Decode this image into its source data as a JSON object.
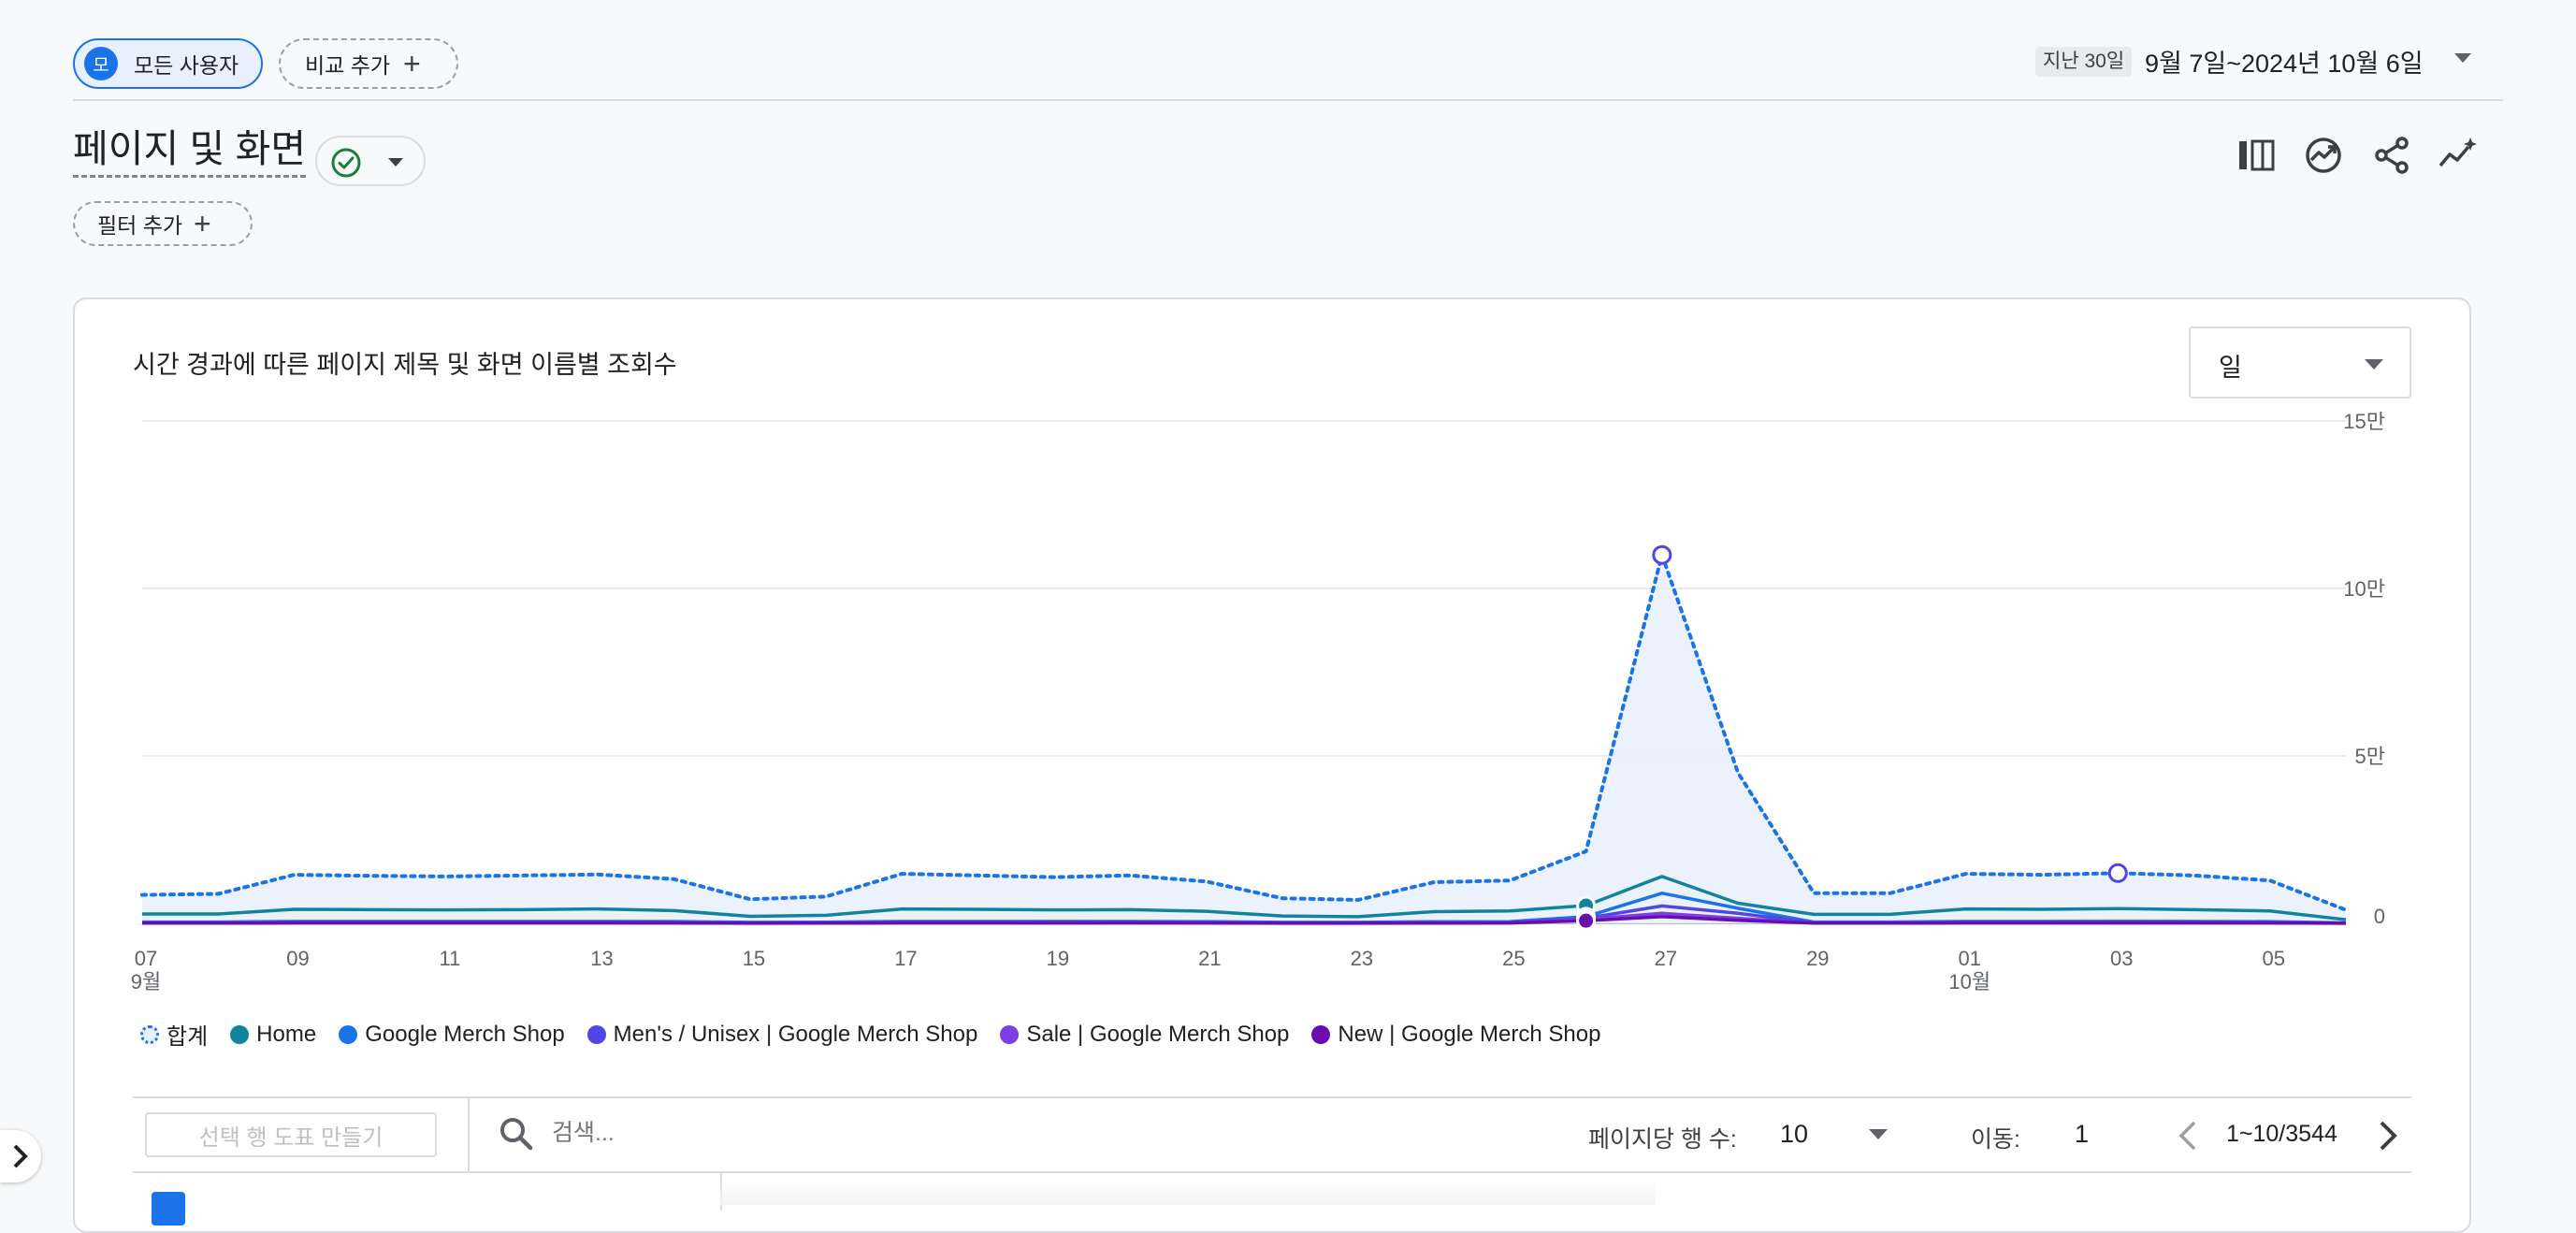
{
  "comparison": {
    "segment_avatar": "모",
    "segment_label": "모든 사용자",
    "add_compare_label": "비교 추가"
  },
  "date_range": {
    "preset": "지난 30일",
    "range": "9월 7일~2024년 10월 6일"
  },
  "page": {
    "title": "페이지 및 화면",
    "add_filter_label": "필터 추가"
  },
  "toolbar_icons": [
    "compare-columns-icon",
    "insights-icon",
    "share-icon",
    "sparkline-icon"
  ],
  "chart_card": {
    "title": "시간 경과에 따른 페이지 제목 및 화면 이름별 조회수",
    "period": "일"
  },
  "chart_data": {
    "type": "line",
    "x": [
      "2024-09-07",
      "2024-09-08",
      "2024-09-09",
      "2024-09-10",
      "2024-09-11",
      "2024-09-12",
      "2024-09-13",
      "2024-09-14",
      "2024-09-15",
      "2024-09-16",
      "2024-09-17",
      "2024-09-18",
      "2024-09-19",
      "2024-09-20",
      "2024-09-21",
      "2024-09-22",
      "2024-09-23",
      "2024-09-24",
      "2024-09-25",
      "2024-09-26",
      "2024-09-27",
      "2024-09-28",
      "2024-09-29",
      "2024-09-30",
      "2024-10-01",
      "2024-10-02",
      "2024-10-03",
      "2024-10-04",
      "2024-10-05",
      "2024-10-06"
    ],
    "x_tick_labels": [
      "07",
      "09",
      "11",
      "13",
      "15",
      "17",
      "19",
      "21",
      "23",
      "25",
      "27",
      "29",
      "01",
      "03",
      "05"
    ],
    "x_tick_months": {
      "07": "9월",
      "01": "10월"
    },
    "y_tick_labels": [
      "0",
      "5만",
      "10만",
      "15만"
    ],
    "ylim": [
      0,
      150000
    ],
    "y_axis_side": "right",
    "grid": true,
    "series": [
      {
        "name": "합계",
        "style": "dotted-area",
        "color": "#1a73e8",
        "values": [
          8500,
          8800,
          14500,
          14200,
          14000,
          14300,
          14600,
          13200,
          7200,
          8000,
          14800,
          14300,
          13800,
          14300,
          12500,
          7500,
          7000,
          12300,
          12800,
          21500,
          110000,
          45000,
          9000,
          9000,
          14800,
          14500,
          15000,
          14300,
          12800,
          4000
        ]
      },
      {
        "name": "Home",
        "color": "#12829d",
        "values": [
          2800,
          2800,
          4200,
          4100,
          4000,
          4100,
          4300,
          3800,
          2100,
          2400,
          4300,
          4200,
          4000,
          4100,
          3600,
          2200,
          2000,
          3500,
          3700,
          5300,
          14000,
          6000,
          2700,
          2700,
          4300,
          4200,
          4400,
          4100,
          3700,
          1100
        ]
      },
      {
        "name": "Google Merch Shop",
        "color": "#1a73e8",
        "values": [
          400,
          400,
          600,
          600,
          600,
          600,
          600,
          550,
          300,
          350,
          600,
          600,
          580,
          600,
          520,
          320,
          300,
          500,
          520,
          2000,
          9000,
          4500,
          400,
          400,
          600,
          600,
          620,
          600,
          530,
          150
        ]
      },
      {
        "name": "Men's / Unisex | Google Merch Shop",
        "color": "#4f46e5",
        "values": [
          150,
          150,
          250,
          250,
          250,
          250,
          260,
          230,
          120,
          140,
          260,
          250,
          240,
          250,
          220,
          130,
          120,
          210,
          220,
          1500,
          5200,
          3000,
          150,
          150,
          260,
          250,
          260,
          250,
          220,
          60
        ]
      },
      {
        "name": "Sale | Google Merch Shop",
        "color": "#7b3fe4",
        "values": [
          100,
          100,
          160,
          160,
          160,
          160,
          170,
          150,
          80,
          90,
          170,
          160,
          155,
          160,
          140,
          85,
          80,
          135,
          140,
          1200,
          3000,
          1500,
          100,
          100,
          170,
          160,
          170,
          160,
          140,
          40
        ]
      },
      {
        "name": "New | Google Merch Shop",
        "color": "#6a0dad",
        "values": [
          60,
          60,
          100,
          100,
          100,
          100,
          105,
          95,
          50,
          55,
          105,
          100,
          98,
          100,
          88,
          52,
          50,
          85,
          88,
          800,
          2000,
          900,
          60,
          60,
          105,
          100,
          105,
          100,
          88,
          25
        ]
      }
    ],
    "markers": [
      {
        "series": 1,
        "index": 19
      },
      {
        "series": 2,
        "index": 19
      },
      {
        "series": 3,
        "index": 19
      },
      {
        "series": 4,
        "index": 19
      },
      {
        "series": 5,
        "index": 19
      },
      {
        "series": 0,
        "index": 20,
        "hollow": true
      },
      {
        "series": 0,
        "index": 26,
        "hollow": true
      }
    ]
  },
  "table_toolbar": {
    "make_vote_label": "선택 행 도표 만들기",
    "search_placeholder": "검색...",
    "rows_per_page_label": "페이지당 행 수:",
    "rows_per_page_value": "10",
    "goto_label": "이동:",
    "goto_value": "1",
    "page_range": "1~10/3544"
  }
}
